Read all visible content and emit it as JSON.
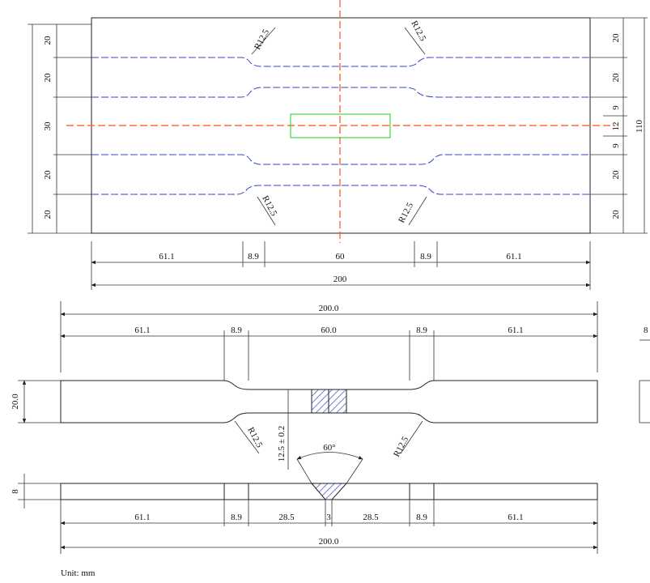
{
  "unit_label": "Unit: mm",
  "top_view": {
    "left_dims": [
      "20",
      "20",
      "30",
      "20",
      "20"
    ],
    "right_dims": [
      "20",
      "20",
      "9",
      "12",
      "9",
      "20",
      "20"
    ],
    "total_height": "110",
    "radius": "R12.5",
    "bottom_dims": [
      "61.1",
      "8.9",
      "60",
      "8.9",
      "61.1"
    ],
    "total_width": "200"
  },
  "front_view": {
    "top_dims": [
      "61.1",
      "8.9",
      "60.0",
      "8.9",
      "61.1"
    ],
    "total_width": "200.0",
    "height": "20.0",
    "radius": "R12.5",
    "neck": "12.5 ± 0.2",
    "angle": "60°",
    "edge_label": "8"
  },
  "thickness_view": {
    "thickness": "8",
    "bottom_dims": [
      "61.1",
      "8.9",
      "28.5",
      "3",
      "28.5",
      "8.9",
      "61.1"
    ],
    "total_width": "200.0"
  },
  "colors": {
    "centerline": "#ff6a3d",
    "cut_lines": "#3344cc",
    "focus_box": "#22cc22"
  }
}
